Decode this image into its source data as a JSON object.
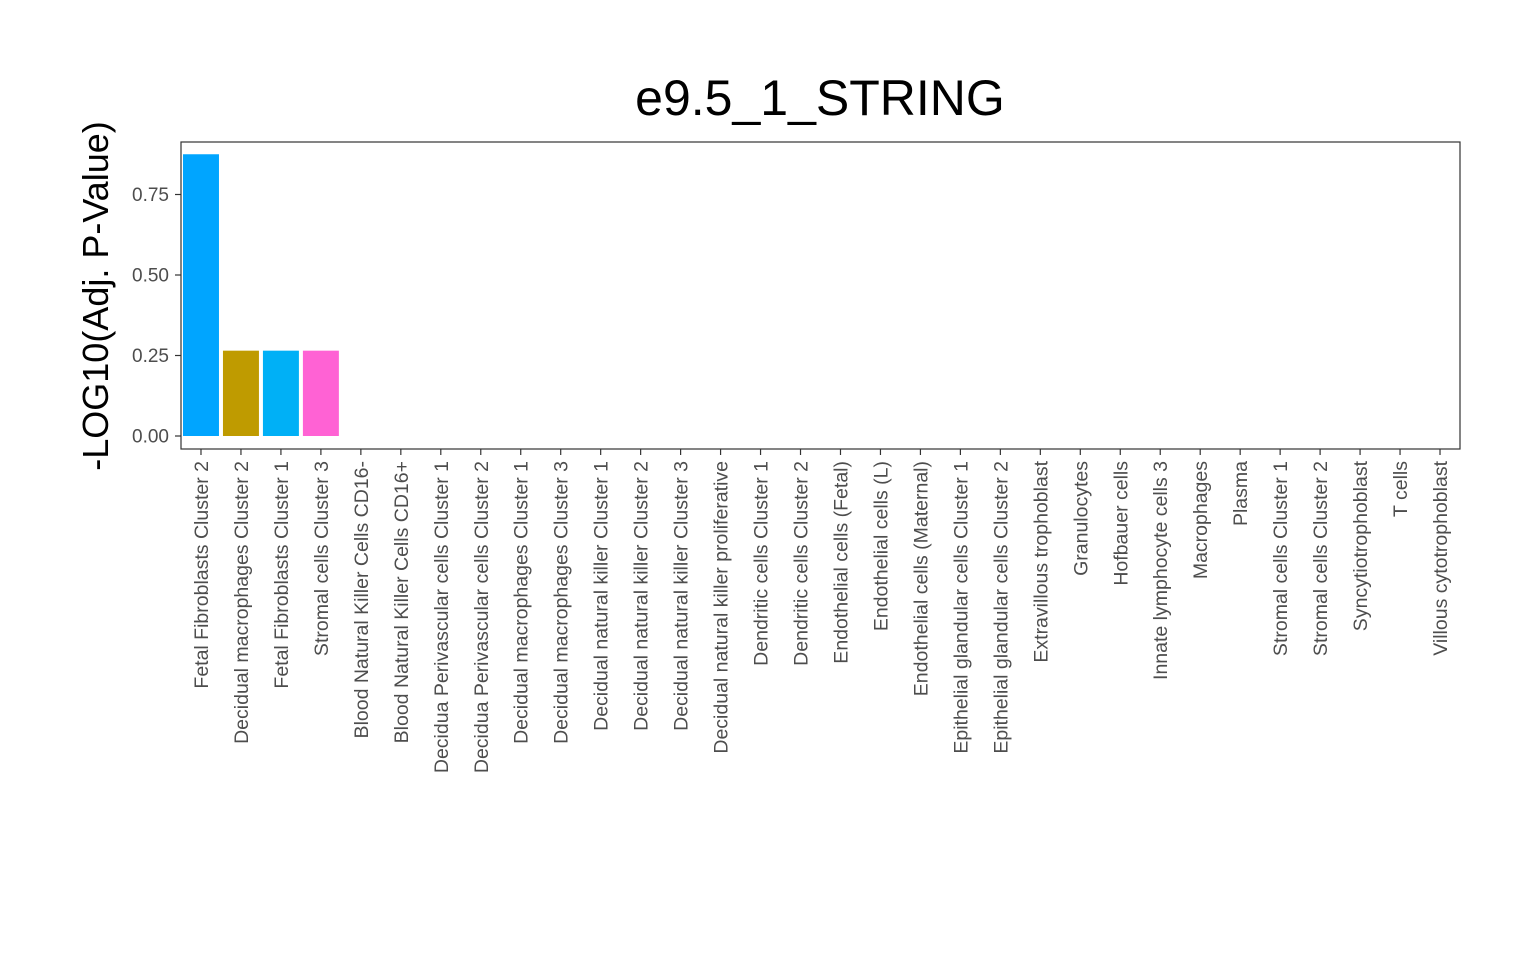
{
  "chart_data": {
    "type": "bar",
    "title": "e9.5_1_STRING",
    "xlabel": "",
    "ylabel": "-LOG10(Adj. P-Value)",
    "ylim": [
      0,
      0.9
    ],
    "yticks": [
      "0.00",
      "0.25",
      "0.50",
      "0.75"
    ],
    "grid": false,
    "legend": "none",
    "categories": [
      "Fetal Fibroblasts Cluster 2",
      "Decidual macrophages Cluster 2",
      "Fetal Fibroblasts Cluster 1",
      "Stromal cells Cluster 3",
      "Blood Natural Killer Cells CD16-",
      "Blood Natural Killer Cells CD16+",
      "Decidua Perivascular cells Cluster 1",
      "Decidua Perivascular cells Cluster 2",
      "Decidual macrophages Cluster 1",
      "Decidual macrophages Cluster 3",
      "Decidual natural killer Cluster 1",
      "Decidual natural killer Cluster 2",
      "Decidual natural killer Cluster 3",
      "Decidual natural killer proliferative",
      "Dendritic cells Cluster 1",
      "Dendritic cells Cluster 2",
      "Endothelial cells (Fetal)",
      "Endothelial cells (L)",
      "Endothelial cells (Maternal)",
      "Epithelial glandular cells Cluster 1",
      "Epithelial glandular cells Cluster 2",
      "Extravillous trophoblast",
      "Granulocytes",
      "Hofbauer cells",
      "Innate lymphocyte cells 3",
      "Macrophages",
      "Plasma",
      "Stromal cells Cluster 1",
      "Stromal cells Cluster 2",
      "Syncytiotrophoblast",
      "T cells",
      "Villous cytotrophoblast"
    ],
    "values": [
      0.875,
      0.265,
      0.265,
      0.265,
      0,
      0,
      0,
      0,
      0,
      0,
      0,
      0,
      0,
      0,
      0,
      0,
      0,
      0,
      0,
      0,
      0,
      0,
      0,
      0,
      0,
      0,
      0,
      0,
      0,
      0,
      0,
      0
    ],
    "colors": [
      "#00A5FF",
      "#BF9B00",
      "#00B0F6",
      "#FF62D4"
    ]
  }
}
